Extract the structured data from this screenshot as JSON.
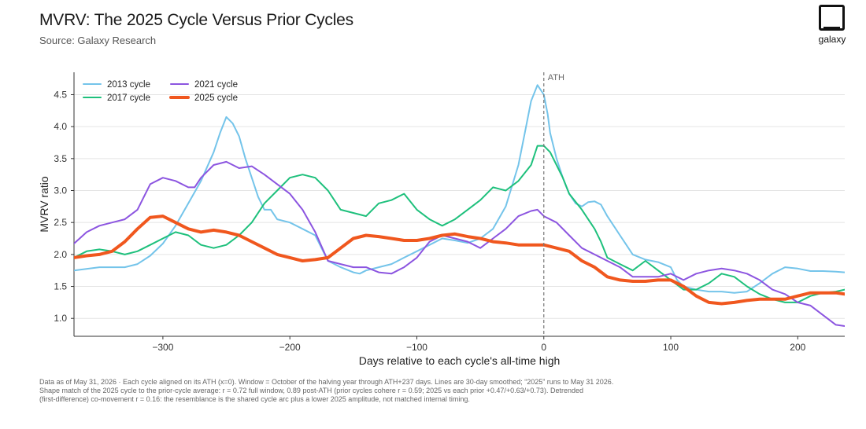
{
  "header": {
    "title": "MVRV: The 2025 Cycle Versus Prior Cycles",
    "subtitle": "Source: Galaxy Research",
    "logo_text": "galaxy"
  },
  "footnote": {
    "line1": "Data as of May 31, 2026 · Each cycle aligned on its ATH (x=0). Window = October of the halving year through ATH+237 days. Lines are 30-day smoothed; “2025” runs to May 31 2026.",
    "line2": "Shape match of the 2025 cycle to the prior-cycle average: r = 0.72 full window, 0.89 post-ATH (prior cycles cohere r = 0.59; 2025 vs each prior +0.47/+0.63/+0.73). Detrended",
    "line3": "(first-difference) co-movement r = 0.16: the resemblance is the shared cycle arc plus a lower 2025 amplitude, not matched internal timing."
  },
  "chart_data": {
    "type": "line",
    "xlabel": "Days relative to each cycle's all-time high",
    "ylabel": "MVRV ratio",
    "xlim": [
      -370,
      237
    ],
    "ylim": [
      0.72,
      4.85
    ],
    "xticks": [
      -300,
      -200,
      -100,
      0,
      100,
      200
    ],
    "xtick_labels": [
      "−300",
      "−200",
      "−100",
      "0",
      "100",
      "200"
    ],
    "yticks": [
      1.0,
      1.5,
      2.0,
      2.5,
      3.0,
      3.5,
      4.0,
      4.5
    ],
    "ytick_labels": [
      "1.0",
      "1.5",
      "2.0",
      "2.5",
      "3.0",
      "3.5",
      "4.0",
      "4.5"
    ],
    "grid": "horizontal",
    "legend": "top-left",
    "annotation": {
      "x": 0,
      "label": "ATH"
    },
    "series": [
      {
        "name": "2013 cycle",
        "color": "#74c4ea",
        "width": 2,
        "points": [
          [
            -370,
            1.75
          ],
          [
            -350,
            1.8
          ],
          [
            -330,
            1.8
          ],
          [
            -320,
            1.85
          ],
          [
            -310,
            1.98
          ],
          [
            -300,
            2.17
          ],
          [
            -290,
            2.45
          ],
          [
            -280,
            2.8
          ],
          [
            -270,
            3.15
          ],
          [
            -260,
            3.6
          ],
          [
            -255,
            3.9
          ],
          [
            -250,
            4.15
          ],
          [
            -245,
            4.05
          ],
          [
            -240,
            3.85
          ],
          [
            -235,
            3.5
          ],
          [
            -230,
            3.2
          ],
          [
            -225,
            2.9
          ],
          [
            -220,
            2.7
          ],
          [
            -215,
            2.7
          ],
          [
            -210,
            2.55
          ],
          [
            -200,
            2.5
          ],
          [
            -190,
            2.4
          ],
          [
            -180,
            2.3
          ],
          [
            -170,
            1.9
          ],
          [
            -160,
            1.8
          ],
          [
            -150,
            1.72
          ],
          [
            -145,
            1.7
          ],
          [
            -140,
            1.75
          ],
          [
            -130,
            1.8
          ],
          [
            -120,
            1.85
          ],
          [
            -110,
            1.95
          ],
          [
            -100,
            2.05
          ],
          [
            -90,
            2.15
          ],
          [
            -80,
            2.25
          ],
          [
            -70,
            2.22
          ],
          [
            -60,
            2.18
          ],
          [
            -50,
            2.25
          ],
          [
            -40,
            2.4
          ],
          [
            -30,
            2.75
          ],
          [
            -20,
            3.4
          ],
          [
            -15,
            3.9
          ],
          [
            -10,
            4.4
          ],
          [
            -5,
            4.65
          ],
          [
            0,
            4.5
          ],
          [
            3,
            4.2
          ],
          [
            5,
            3.9
          ],
          [
            10,
            3.5
          ],
          [
            15,
            3.2
          ],
          [
            20,
            2.95
          ],
          [
            25,
            2.8
          ],
          [
            30,
            2.75
          ],
          [
            35,
            2.82
          ],
          [
            40,
            2.83
          ],
          [
            45,
            2.78
          ],
          [
            50,
            2.6
          ],
          [
            55,
            2.45
          ],
          [
            60,
            2.3
          ],
          [
            65,
            2.15
          ],
          [
            70,
            2.0
          ],
          [
            80,
            1.92
          ],
          [
            90,
            1.88
          ],
          [
            100,
            1.8
          ],
          [
            105,
            1.6
          ],
          [
            110,
            1.5
          ],
          [
            120,
            1.45
          ],
          [
            130,
            1.42
          ],
          [
            140,
            1.42
          ],
          [
            150,
            1.4
          ],
          [
            160,
            1.42
          ],
          [
            170,
            1.55
          ],
          [
            180,
            1.7
          ],
          [
            190,
            1.8
          ],
          [
            200,
            1.78
          ],
          [
            210,
            1.74
          ],
          [
            220,
            1.74
          ],
          [
            230,
            1.73
          ],
          [
            237,
            1.72
          ]
        ]
      },
      {
        "name": "2017 cycle",
        "color": "#1ec07c",
        "width": 2,
        "points": [
          [
            -370,
            1.95
          ],
          [
            -360,
            2.05
          ],
          [
            -350,
            2.08
          ],
          [
            -340,
            2.05
          ],
          [
            -330,
            2.0
          ],
          [
            -320,
            2.05
          ],
          [
            -310,
            2.15
          ],
          [
            -300,
            2.25
          ],
          [
            -290,
            2.35
          ],
          [
            -280,
            2.3
          ],
          [
            -270,
            2.15
          ],
          [
            -260,
            2.1
          ],
          [
            -250,
            2.15
          ],
          [
            -240,
            2.3
          ],
          [
            -230,
            2.5
          ],
          [
            -220,
            2.8
          ],
          [
            -210,
            3.0
          ],
          [
            -200,
            3.2
          ],
          [
            -190,
            3.25
          ],
          [
            -180,
            3.2
          ],
          [
            -170,
            3.0
          ],
          [
            -160,
            2.7
          ],
          [
            -150,
            2.65
          ],
          [
            -140,
            2.6
          ],
          [
            -130,
            2.8
          ],
          [
            -120,
            2.85
          ],
          [
            -110,
            2.95
          ],
          [
            -100,
            2.7
          ],
          [
            -90,
            2.55
          ],
          [
            -80,
            2.45
          ],
          [
            -70,
            2.55
          ],
          [
            -60,
            2.7
          ],
          [
            -50,
            2.85
          ],
          [
            -40,
            3.05
          ],
          [
            -30,
            3.0
          ],
          [
            -20,
            3.15
          ],
          [
            -10,
            3.4
          ],
          [
            -5,
            3.7
          ],
          [
            0,
            3.7
          ],
          [
            5,
            3.6
          ],
          [
            10,
            3.4
          ],
          [
            15,
            3.2
          ],
          [
            20,
            2.95
          ],
          [
            30,
            2.7
          ],
          [
            40,
            2.4
          ],
          [
            45,
            2.2
          ],
          [
            50,
            1.95
          ],
          [
            60,
            1.85
          ],
          [
            70,
            1.75
          ],
          [
            80,
            1.9
          ],
          [
            90,
            1.75
          ],
          [
            100,
            1.6
          ],
          [
            110,
            1.45
          ],
          [
            120,
            1.45
          ],
          [
            130,
            1.55
          ],
          [
            140,
            1.7
          ],
          [
            150,
            1.65
          ],
          [
            160,
            1.5
          ],
          [
            170,
            1.38
          ],
          [
            180,
            1.3
          ],
          [
            190,
            1.25
          ],
          [
            200,
            1.25
          ],
          [
            210,
            1.35
          ],
          [
            220,
            1.4
          ],
          [
            230,
            1.42
          ],
          [
            237,
            1.45
          ]
        ]
      },
      {
        "name": "2021 cycle",
        "color": "#8c55e0",
        "width": 2,
        "points": [
          [
            -370,
            2.17
          ],
          [
            -360,
            2.35
          ],
          [
            -350,
            2.45
          ],
          [
            -340,
            2.5
          ],
          [
            -330,
            2.55
          ],
          [
            -320,
            2.7
          ],
          [
            -310,
            3.1
          ],
          [
            -300,
            3.2
          ],
          [
            -290,
            3.15
          ],
          [
            -280,
            3.05
          ],
          [
            -275,
            3.05
          ],
          [
            -270,
            3.2
          ],
          [
            -260,
            3.4
          ],
          [
            -250,
            3.45
          ],
          [
            -240,
            3.35
          ],
          [
            -230,
            3.38
          ],
          [
            -220,
            3.25
          ],
          [
            -210,
            3.1
          ],
          [
            -200,
            2.95
          ],
          [
            -190,
            2.7
          ],
          [
            -180,
            2.35
          ],
          [
            -170,
            1.9
          ],
          [
            -160,
            1.85
          ],
          [
            -150,
            1.8
          ],
          [
            -140,
            1.8
          ],
          [
            -130,
            1.72
          ],
          [
            -120,
            1.7
          ],
          [
            -110,
            1.8
          ],
          [
            -100,
            1.95
          ],
          [
            -90,
            2.2
          ],
          [
            -80,
            2.3
          ],
          [
            -70,
            2.25
          ],
          [
            -60,
            2.2
          ],
          [
            -50,
            2.1
          ],
          [
            -40,
            2.25
          ],
          [
            -30,
            2.4
          ],
          [
            -20,
            2.6
          ],
          [
            -10,
            2.68
          ],
          [
            -5,
            2.7
          ],
          [
            0,
            2.6
          ],
          [
            10,
            2.5
          ],
          [
            20,
            2.3
          ],
          [
            30,
            2.1
          ],
          [
            40,
            2.0
          ],
          [
            50,
            1.9
          ],
          [
            60,
            1.8
          ],
          [
            70,
            1.65
          ],
          [
            80,
            1.65
          ],
          [
            90,
            1.65
          ],
          [
            100,
            1.7
          ],
          [
            110,
            1.6
          ],
          [
            120,
            1.7
          ],
          [
            130,
            1.75
          ],
          [
            140,
            1.78
          ],
          [
            150,
            1.75
          ],
          [
            160,
            1.7
          ],
          [
            170,
            1.6
          ],
          [
            180,
            1.45
          ],
          [
            190,
            1.38
          ],
          [
            200,
            1.25
          ],
          [
            210,
            1.2
          ],
          [
            220,
            1.05
          ],
          [
            230,
            0.9
          ],
          [
            237,
            0.88
          ]
        ]
      },
      {
        "name": "2025 cycle",
        "color": "#f0571e",
        "width": 4,
        "points": [
          [
            -370,
            1.95
          ],
          [
            -360,
            1.98
          ],
          [
            -350,
            2.0
          ],
          [
            -340,
            2.05
          ],
          [
            -330,
            2.2
          ],
          [
            -320,
            2.4
          ],
          [
            -310,
            2.58
          ],
          [
            -300,
            2.6
          ],
          [
            -290,
            2.5
          ],
          [
            -280,
            2.4
          ],
          [
            -270,
            2.35
          ],
          [
            -260,
            2.38
          ],
          [
            -250,
            2.35
          ],
          [
            -240,
            2.3
          ],
          [
            -230,
            2.2
          ],
          [
            -220,
            2.1
          ],
          [
            -210,
            2.0
          ],
          [
            -200,
            1.95
          ],
          [
            -190,
            1.9
          ],
          [
            -180,
            1.92
          ],
          [
            -170,
            1.95
          ],
          [
            -160,
            2.1
          ],
          [
            -150,
            2.25
          ],
          [
            -140,
            2.3
          ],
          [
            -130,
            2.28
          ],
          [
            -120,
            2.25
          ],
          [
            -110,
            2.22
          ],
          [
            -100,
            2.22
          ],
          [
            -90,
            2.25
          ],
          [
            -80,
            2.3
          ],
          [
            -70,
            2.32
          ],
          [
            -60,
            2.28
          ],
          [
            -50,
            2.25
          ],
          [
            -40,
            2.2
          ],
          [
            -30,
            2.18
          ],
          [
            -20,
            2.15
          ],
          [
            -10,
            2.15
          ],
          [
            0,
            2.15
          ],
          [
            10,
            2.1
          ],
          [
            20,
            2.05
          ],
          [
            30,
            1.9
          ],
          [
            40,
            1.8
          ],
          [
            50,
            1.65
          ],
          [
            60,
            1.6
          ],
          [
            70,
            1.58
          ],
          [
            80,
            1.58
          ],
          [
            90,
            1.6
          ],
          [
            100,
            1.6
          ],
          [
            110,
            1.5
          ],
          [
            120,
            1.35
          ],
          [
            130,
            1.25
          ],
          [
            140,
            1.23
          ],
          [
            150,
            1.25
          ],
          [
            160,
            1.28
          ],
          [
            170,
            1.3
          ],
          [
            180,
            1.3
          ],
          [
            190,
            1.3
          ],
          [
            200,
            1.35
          ],
          [
            210,
            1.4
          ],
          [
            220,
            1.4
          ],
          [
            230,
            1.4
          ],
          [
            237,
            1.38
          ]
        ]
      }
    ]
  }
}
